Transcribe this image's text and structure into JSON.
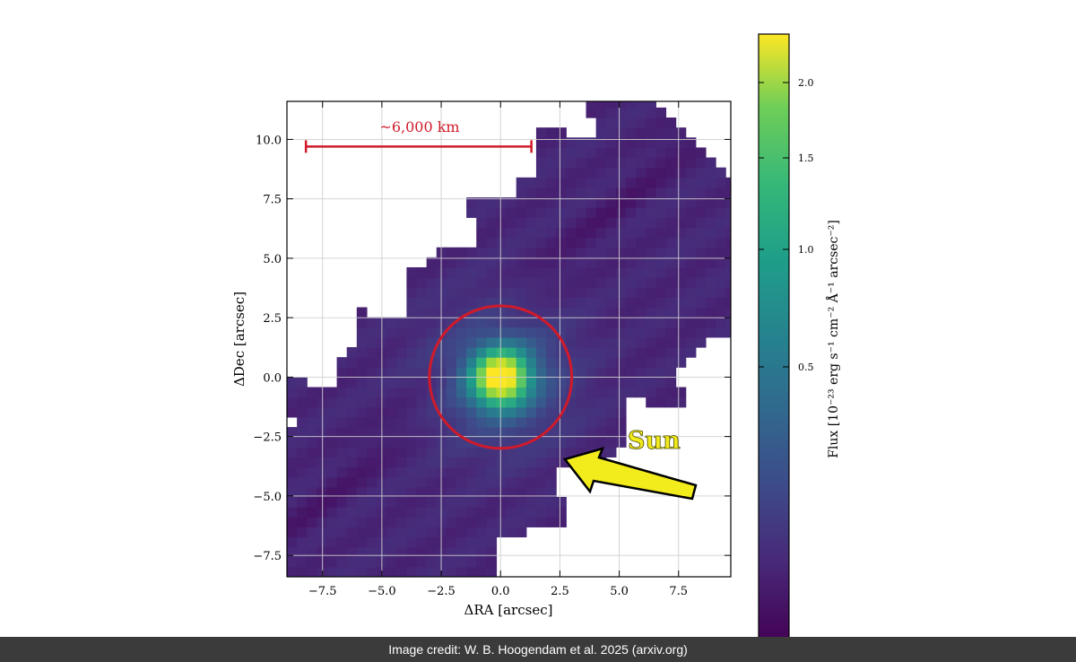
{
  "chart_data": {
    "type": "heatmap",
    "colormap": "viridis",
    "xlabel": "ΔRA [arcsec]",
    "ylabel": "ΔDec [arcsec]",
    "xlim": [
      -9,
      9.7
    ],
    "ylim": [
      -8.4,
      11.6
    ],
    "x_ticks": [
      -7.5,
      -5.0,
      -2.5,
      0.0,
      2.5,
      5.0,
      7.5
    ],
    "x_tick_labels": [
      "−7.5",
      "−5.0",
      "−2.5",
      "0.0",
      "2.5",
      "5.0",
      "7.5"
    ],
    "y_ticks": [
      -7.5,
      -5.0,
      -2.5,
      0.0,
      2.5,
      5.0,
      7.5,
      10.0
    ],
    "y_tick_labels": [
      "−7.5",
      "−5.0",
      "−2.5",
      "0.0",
      "2.5",
      "5.0",
      "7.5",
      "10.0"
    ],
    "grid": true,
    "colorbar": {
      "label": "Flux [10⁻²³ erg s⁻¹ cm⁻² Å⁻¹ arcsec⁻²]",
      "ticks": [
        0.5,
        1.0,
        1.5,
        2.0
      ],
      "tick_labels": [
        "0.5",
        "1.0",
        "1.5",
        "2.0"
      ],
      "range": [
        0.0,
        2.3
      ]
    },
    "source": {
      "x": 0.0,
      "y": 0.0,
      "peak_flux": 2.2
    },
    "circle": {
      "x": 0.0,
      "y": 0.0,
      "radius_arcsec": 3.0,
      "color": "#d11a2a"
    },
    "scale_bar": {
      "label": "~6,000 km",
      "x_start": -8.2,
      "x_end": 1.3,
      "y": 9.7,
      "color": "#d11a2a"
    },
    "annotation": {
      "label": "Sun",
      "color": "#f2ec1c"
    }
  },
  "caption": "Image credit: W. B. Hoogendam et al. 2025 (arxiv.org)"
}
